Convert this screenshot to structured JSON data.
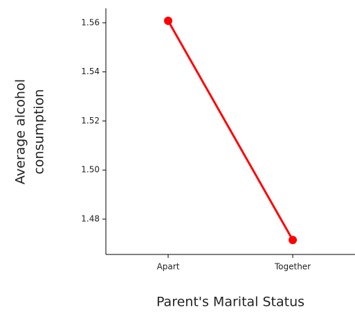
{
  "chart_data": {
    "type": "line",
    "xlabel": "Parent's Marital Status",
    "ylabel": [
      "Average alcohol",
      "consumption"
    ],
    "categories": [
      "Apart",
      "Together"
    ],
    "series": [
      {
        "name": null,
        "color": "#ff0000",
        "values": [
          1.5608,
          1.4715
        ]
      }
    ],
    "ylim": [
      1.4656,
      1.5659
    ],
    "yticks": [
      {
        "value": 1.48,
        "label": "1.48"
      },
      {
        "value": 1.5,
        "label": "1.50"
      },
      {
        "value": 1.52,
        "label": "1.52"
      },
      {
        "value": 1.54,
        "label": "1.54"
      },
      {
        "value": 1.56,
        "label": "1.56"
      }
    ]
  }
}
